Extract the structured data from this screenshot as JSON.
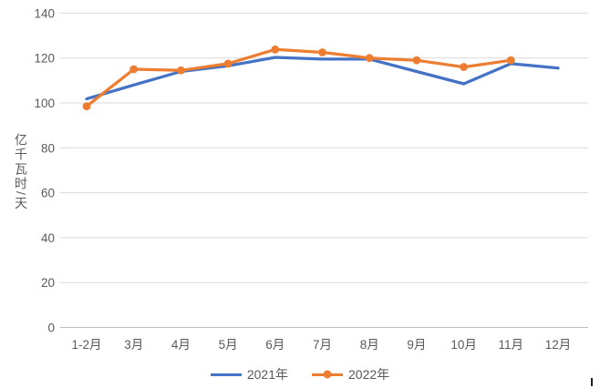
{
  "chart_data": {
    "type": "line",
    "title": "",
    "xlabel": "",
    "ylabel": "亿千瓦时/天",
    "categories": [
      "1-2月",
      "3月",
      "4月",
      "5月",
      "6月",
      "7月",
      "8月",
      "9月",
      "10月",
      "11月",
      "12月"
    ],
    "series": [
      {
        "name": "2021年",
        "color": "#4472C4",
        "marker": "none",
        "values": [
          101.8,
          108,
          114,
          116.5,
          120.3,
          119.5,
          119.5,
          114,
          108.5,
          117.5,
          115.5
        ]
      },
      {
        "name": "2022年",
        "color": "#ED7D31",
        "marker": "circle",
        "values": [
          98.5,
          115,
          114.5,
          117.5,
          123.8,
          122.5,
          120,
          119,
          116,
          119,
          null
        ]
      }
    ],
    "ylim": [
      0,
      140
    ],
    "yticks": [
      0,
      20,
      40,
      60,
      80,
      100,
      120,
      140
    ],
    "grid": "horizontal",
    "legend_position": "bottom",
    "colors": {
      "axis_text": "#595959",
      "gridline": "#D9D9D9",
      "axis_line": "#BFBFBF",
      "background": "#FFFFFF"
    }
  }
}
